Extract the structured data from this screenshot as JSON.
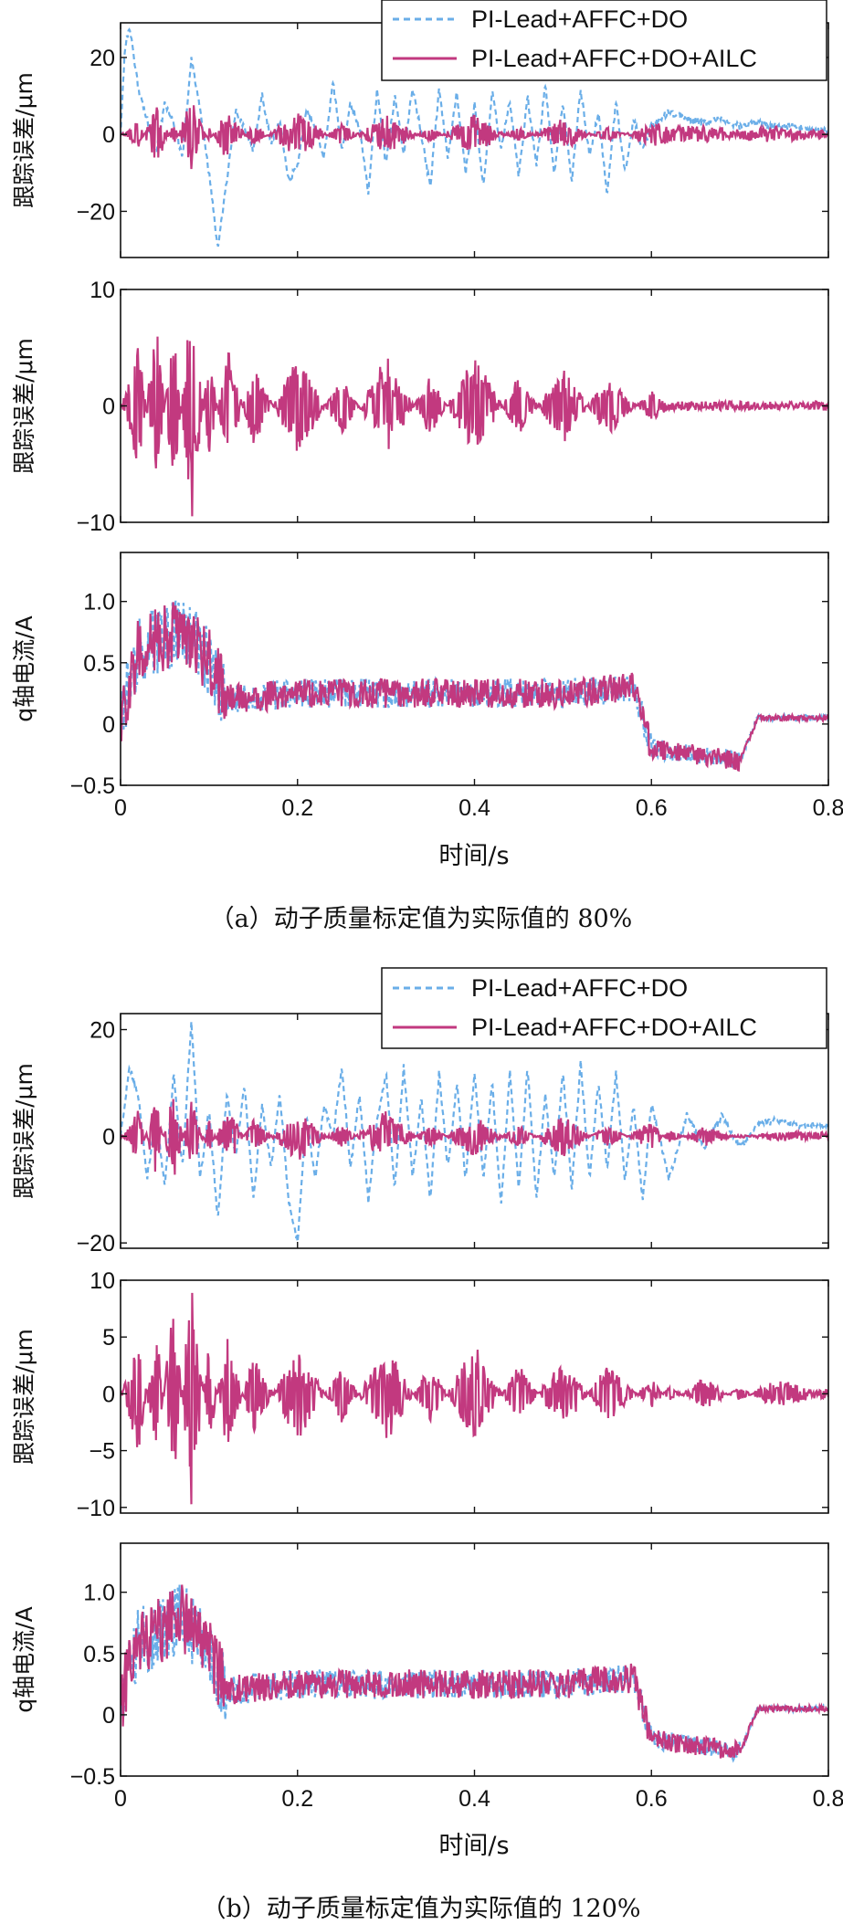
{
  "colors": {
    "ref": "#6aaee8",
    "ailc": "#c2397f",
    "axis": "#111111"
  },
  "legend": {
    "series_a": "PI-Lead+AFFC+DO",
    "series_b": "PI-Lead+AFFC+DO+AILC"
  },
  "xlabel": "时间/s",
  "captions": {
    "a": "（a）动子质量标定值为实际值的 80%",
    "b": "（b）动子质量标定值为实际值的 120%"
  },
  "chart_data": [
    {
      "panel": "a-1",
      "type": "line",
      "ylabel": "跟踪误差/μm",
      "xlim": [
        0,
        0.8
      ],
      "ylim": [
        -32,
        29
      ],
      "xticks": [
        0,
        0.2,
        0.4,
        0.6,
        0.8
      ],
      "yticks": [
        -20,
        0,
        20
      ],
      "xticklabels": [],
      "yticklabels": [
        "−20",
        "0",
        "20"
      ],
      "legend": "top-right",
      "series": [
        {
          "name": "PI-Lead+AFFC+DO",
          "style": "dashed",
          "color": "#6aaee8",
          "x": [
            0,
            0.005,
            0.01,
            0.02,
            0.03,
            0.04,
            0.05,
            0.06,
            0.07,
            0.08,
            0.09,
            0.1,
            0.11,
            0.12,
            0.13,
            0.14,
            0.15,
            0.16,
            0.17,
            0.18,
            0.19,
            0.2,
            0.21,
            0.22,
            0.23,
            0.24,
            0.25,
            0.26,
            0.27,
            0.28,
            0.29,
            0.3,
            0.31,
            0.32,
            0.33,
            0.34,
            0.35,
            0.36,
            0.37,
            0.38,
            0.39,
            0.4,
            0.41,
            0.42,
            0.43,
            0.44,
            0.45,
            0.46,
            0.47,
            0.48,
            0.49,
            0.5,
            0.51,
            0.52,
            0.53,
            0.54,
            0.55,
            0.56,
            0.57,
            0.58,
            0.59,
            0.6,
            0.62,
            0.64,
            0.66,
            0.68,
            0.7,
            0.72,
            0.74,
            0.76,
            0.78,
            0.8
          ],
          "y": [
            0,
            23,
            28,
            12,
            4,
            -5,
            8,
            3,
            -6,
            20,
            6,
            -10,
            -30,
            -12,
            6,
            2,
            -4,
            10,
            -2,
            3,
            -12,
            -8,
            6,
            2,
            -6,
            14,
            -4,
            8,
            2,
            -15,
            12,
            -8,
            10,
            -5,
            12,
            0,
            -14,
            12,
            -6,
            11,
            -10,
            8,
            -14,
            11,
            -4,
            9,
            -11,
            10,
            -8,
            13,
            -10,
            8,
            -12,
            12,
            -6,
            6,
            -16,
            9,
            -10,
            4,
            -4,
            2,
            6,
            4,
            3,
            4,
            2,
            3,
            2,
            2,
            1,
            1
          ]
        },
        {
          "name": "PI-Lead+AFFC+DO+AILC",
          "style": "solid",
          "color": "#c2397f",
          "x": [
            0,
            0.02,
            0.04,
            0.06,
            0.08,
            0.1,
            0.12,
            0.15,
            0.2,
            0.25,
            0.3,
            0.35,
            0.4,
            0.45,
            0.5,
            0.55,
            0.6,
            0.62,
            0.66,
            0.7,
            0.74,
            0.78,
            0.8
          ],
          "y": [
            0,
            -5,
            7,
            -4,
            8,
            -3,
            6,
            -4,
            5,
            -4,
            4,
            -3,
            4,
            -3,
            3,
            -3,
            2,
            1,
            1,
            0,
            1,
            0,
            0
          ]
        }
      ]
    },
    {
      "panel": "a-2",
      "type": "line",
      "ylabel": "跟踪误差/μm",
      "xlim": [
        0,
        0.8
      ],
      "ylim": [
        -10,
        10
      ],
      "xticks": [
        0,
        0.2,
        0.4,
        0.6,
        0.8
      ],
      "yticks": [
        -10,
        0,
        10
      ],
      "xticklabels": [],
      "yticklabels": [
        "−10",
        "0",
        "10"
      ],
      "series": [
        {
          "name": "PI-Lead+AFFC+DO+AILC",
          "style": "solid",
          "color": "#c2397f",
          "x": [
            0,
            0.02,
            0.04,
            0.06,
            0.08,
            0.1,
            0.12,
            0.15,
            0.2,
            0.25,
            0.3,
            0.35,
            0.4,
            0.45,
            0.5,
            0.55,
            0.6,
            0.62,
            0.64,
            0.66,
            0.68,
            0.7,
            0.72,
            0.74,
            0.76,
            0.78,
            0.8
          ],
          "y": [
            0,
            -6,
            7,
            -8,
            10,
            -5,
            5,
            -4,
            4,
            -3,
            4,
            -3,
            4,
            -3,
            3,
            -3,
            1,
            0,
            0,
            0,
            0,
            0,
            0,
            0,
            0,
            0,
            0
          ]
        }
      ]
    },
    {
      "panel": "a-3",
      "type": "line",
      "ylabel": "q轴电流/A",
      "xlim": [
        0,
        0.8
      ],
      "ylim": [
        -0.5,
        1.4
      ],
      "xticks": [
        0,
        0.2,
        0.4,
        0.6,
        0.8
      ],
      "yticks": [
        -0.5,
        0,
        0.5,
        1.0
      ],
      "xticklabels": [
        "0",
        "0.2",
        "0.4",
        "0.6",
        "0.8"
      ],
      "yticklabels": [
        "−0.5",
        "0",
        "0.5",
        "1.0"
      ],
      "series": [
        {
          "name": "PI-Lead+AFFC+DO",
          "style": "dashed",
          "color": "#6aaee8",
          "x": [
            0,
            0.02,
            0.05,
            0.07,
            0.1,
            0.12,
            0.2,
            0.3,
            0.4,
            0.5,
            0.58,
            0.6,
            0.65,
            0.7,
            0.72,
            0.8
          ],
          "y": [
            0.1,
            0.6,
            0.7,
            0.8,
            0.5,
            0.2,
            0.25,
            0.25,
            0.25,
            0.25,
            0.3,
            -0.2,
            -0.25,
            -0.3,
            0.05,
            0.05
          ]
        },
        {
          "name": "PI-Lead+AFFC+DO+AILC",
          "style": "solid",
          "color": "#c2397f",
          "x": [
            0,
            0.02,
            0.05,
            0.07,
            0.1,
            0.12,
            0.2,
            0.3,
            0.4,
            0.5,
            0.58,
            0.6,
            0.65,
            0.7,
            0.72,
            0.8
          ],
          "y": [
            0.1,
            0.6,
            0.7,
            0.8,
            0.5,
            0.2,
            0.25,
            0.25,
            0.25,
            0.25,
            0.3,
            -0.2,
            -0.25,
            -0.3,
            0.05,
            0.05
          ]
        }
      ]
    },
    {
      "panel": "b-1",
      "type": "line",
      "ylabel": "跟踪误差/μm",
      "xlim": [
        0,
        0.8
      ],
      "ylim": [
        -21,
        23
      ],
      "xticks": [
        0,
        0.2,
        0.4,
        0.6,
        0.8
      ],
      "yticks": [
        -20,
        0,
        20
      ],
      "xticklabels": [],
      "yticklabels": [
        "−20",
        "0",
        "20"
      ],
      "legend": "top-right",
      "series": [
        {
          "name": "PI-Lead+AFFC+DO",
          "style": "dashed",
          "color": "#6aaee8",
          "x": [
            0,
            0.01,
            0.02,
            0.03,
            0.04,
            0.05,
            0.06,
            0.07,
            0.08,
            0.09,
            0.1,
            0.11,
            0.12,
            0.13,
            0.14,
            0.15,
            0.16,
            0.17,
            0.18,
            0.19,
            0.2,
            0.21,
            0.22,
            0.23,
            0.24,
            0.25,
            0.26,
            0.27,
            0.28,
            0.29,
            0.3,
            0.31,
            0.32,
            0.33,
            0.34,
            0.35,
            0.36,
            0.37,
            0.38,
            0.39,
            0.4,
            0.41,
            0.42,
            0.43,
            0.44,
            0.45,
            0.46,
            0.47,
            0.48,
            0.49,
            0.5,
            0.51,
            0.52,
            0.53,
            0.54,
            0.55,
            0.56,
            0.57,
            0.58,
            0.59,
            0.6,
            0.62,
            0.64,
            0.66,
            0.68,
            0.7,
            0.72,
            0.74,
            0.76,
            0.78,
            0.8
          ],
          "y": [
            0,
            13,
            8,
            -8,
            4,
            -10,
            12,
            -6,
            22,
            -8,
            5,
            -16,
            8,
            -4,
            10,
            -12,
            6,
            -6,
            8,
            -12,
            -20,
            4,
            -8,
            6,
            0,
            13,
            -6,
            8,
            -12,
            3,
            12,
            -10,
            13,
            -8,
            7,
            -12,
            12,
            -6,
            10,
            -8,
            12,
            -8,
            10,
            -13,
            12,
            -10,
            13,
            -12,
            8,
            -8,
            12,
            -10,
            14,
            -8,
            10,
            -6,
            12,
            -8,
            6,
            -12,
            6,
            -8,
            4,
            -2,
            4,
            -2,
            2,
            3,
            2,
            2,
            2
          ]
        },
        {
          "name": "PI-Lead+AFFC+DO+AILC",
          "style": "solid",
          "color": "#c2397f",
          "x": [
            0,
            0.02,
            0.04,
            0.06,
            0.08,
            0.1,
            0.12,
            0.15,
            0.2,
            0.25,
            0.3,
            0.35,
            0.4,
            0.45,
            0.5,
            0.55,
            0.6,
            0.62,
            0.66,
            0.7,
            0.74,
            0.78,
            0.8
          ],
          "y": [
            0,
            -6,
            7,
            -10,
            6,
            -4,
            5,
            -4,
            4,
            -3,
            4,
            -3,
            3,
            -3,
            3,
            -3,
            2,
            -2,
            1,
            -1,
            0,
            0,
            0
          ]
        }
      ]
    },
    {
      "panel": "b-2",
      "type": "line",
      "ylabel": "跟踪误差/μm",
      "xlim": [
        0,
        0.8
      ],
      "ylim": [
        -10.5,
        10
      ],
      "xticks": [
        0,
        0.2,
        0.4,
        0.6,
        0.8
      ],
      "yticks": [
        -10,
        -5,
        0,
        5,
        10
      ],
      "xticklabels": [],
      "yticklabels": [
        "−10",
        "−5",
        "0",
        "5",
        "10"
      ],
      "series": [
        {
          "name": "PI-Lead+AFFC+DO+AILC",
          "style": "solid",
          "color": "#c2397f",
          "x": [
            0,
            0.02,
            0.04,
            0.06,
            0.08,
            0.1,
            0.12,
            0.15,
            0.2,
            0.25,
            0.3,
            0.35,
            0.4,
            0.45,
            0.5,
            0.55,
            0.6,
            0.62,
            0.66,
            0.7,
            0.74,
            0.78,
            0.8
          ],
          "y": [
            0,
            -6,
            6,
            -9,
            10,
            -5,
            5,
            -4,
            4,
            -3,
            4,
            -3,
            4,
            -3,
            3,
            -3,
            1,
            -1,
            1,
            -1,
            1,
            0,
            0
          ]
        }
      ]
    },
    {
      "panel": "b-3",
      "type": "line",
      "ylabel": "q轴电流/A",
      "xlim": [
        0,
        0.8
      ],
      "ylim": [
        -0.5,
        1.4
      ],
      "xticks": [
        0,
        0.2,
        0.4,
        0.6,
        0.8
      ],
      "yticks": [
        -0.5,
        0,
        0.5,
        1.0
      ],
      "xticklabels": [
        "0",
        "0.2",
        "0.4",
        "0.6",
        "0.8"
      ],
      "yticklabels": [
        "−0.5",
        "0",
        "0.5",
        "1.0"
      ],
      "series": [
        {
          "name": "PI-Lead+AFFC+DO",
          "style": "dashed",
          "color": "#6aaee8",
          "x": [
            0,
            0.02,
            0.05,
            0.07,
            0.1,
            0.12,
            0.2,
            0.3,
            0.4,
            0.5,
            0.58,
            0.6,
            0.65,
            0.7,
            0.72,
            0.8
          ],
          "y": [
            0.1,
            0.6,
            0.7,
            0.8,
            0.5,
            0.2,
            0.25,
            0.25,
            0.25,
            0.25,
            0.3,
            -0.2,
            -0.25,
            -0.3,
            0.05,
            0.05
          ]
        },
        {
          "name": "PI-Lead+AFFC+DO+AILC",
          "style": "solid",
          "color": "#c2397f",
          "x": [
            0,
            0.02,
            0.05,
            0.07,
            0.1,
            0.12,
            0.2,
            0.3,
            0.4,
            0.5,
            0.58,
            0.6,
            0.65,
            0.7,
            0.72,
            0.8
          ],
          "y": [
            0.1,
            0.6,
            0.7,
            0.8,
            0.5,
            0.2,
            0.25,
            0.25,
            0.25,
            0.25,
            0.3,
            -0.2,
            -0.25,
            -0.3,
            0.05,
            0.05
          ]
        }
      ]
    }
  ]
}
